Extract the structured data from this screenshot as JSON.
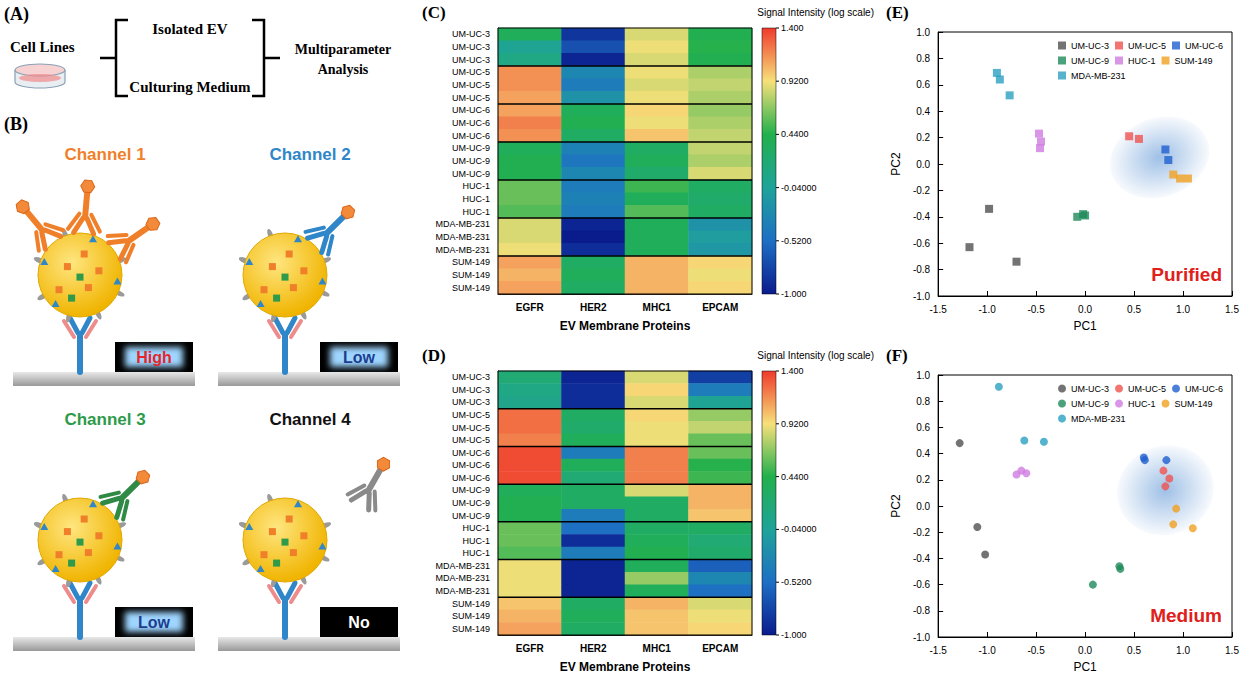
{
  "diagram": {
    "panel_A": {
      "label": "(A)",
      "source": "Cell Lines",
      "branches": [
        "Isolated EV",
        "Culturing Medium"
      ],
      "result": "Multiparameter Analysis"
    },
    "panel_B": {
      "label": "(B)",
      "channels": [
        {
          "title": "Channel 1",
          "color": "#f07f2a",
          "antibody_color": "#f07f2a",
          "bound_antibodies": 3,
          "free_antibodies": 0,
          "signal": "High",
          "signal_color": "#e3262b",
          "glow": true
        },
        {
          "title": "Channel 2",
          "color": "#2f86c8",
          "antibody_color": "#2f86c8",
          "bound_antibodies": 1,
          "free_antibodies": 0,
          "signal": "Low",
          "signal_color": "#1c3e8f",
          "glow": true
        },
        {
          "title": "Channel 3",
          "color": "#2e9a4a",
          "antibody_color": "#2e8a45",
          "bound_antibodies": 1,
          "free_antibodies": 0,
          "signal": "Low",
          "signal_color": "#1c3e8f",
          "glow": true
        },
        {
          "title": "Channel 4",
          "color": "#111111",
          "antibody_color": "#8a8a8a",
          "bound_antibodies": 0,
          "free_antibodies": 1,
          "signal": "No",
          "signal_color": "#ffffff",
          "glow": false
        }
      ]
    }
  },
  "chart_data": [
    {
      "type": "heatmap",
      "panel_label": "(C)",
      "x_label": "EV Membrane Proteins",
      "categories": [
        "EGFR",
        "HER2",
        "MHC1",
        "EPCAM"
      ],
      "rows": [
        "UM-UC-3",
        "UM-UC-3",
        "UM-UC-3",
        "UM-UC-5",
        "UM-UC-5",
        "UM-UC-5",
        "UM-UC-6",
        "UM-UC-6",
        "UM-UC-6",
        "UM-UC-9",
        "UM-UC-9",
        "UM-UC-9",
        "HUC-1",
        "HUC-1",
        "HUC-1",
        "MDA-MB-231",
        "MDA-MB-231",
        "MDA-MB-231",
        "SUM-149",
        "SUM-149",
        "SUM-149"
      ],
      "cells": [
        [
          0.35,
          -0.85,
          0.85,
          0.4
        ],
        [
          0.0,
          -0.7,
          0.9,
          0.45
        ],
        [
          0.1,
          -0.95,
          0.85,
          0.4
        ],
        [
          1.15,
          -0.3,
          0.9,
          0.75
        ],
        [
          1.15,
          -0.4,
          0.85,
          0.8
        ],
        [
          1.1,
          -0.2,
          0.9,
          0.75
        ],
        [
          1.1,
          0.35,
          0.95,
          0.7
        ],
        [
          1.2,
          0.4,
          0.9,
          0.75
        ],
        [
          1.15,
          0.3,
          1.0,
          0.8
        ],
        [
          0.35,
          -0.35,
          0.3,
          0.8
        ],
        [
          0.4,
          -0.45,
          0.35,
          0.75
        ],
        [
          0.4,
          -0.3,
          0.25,
          0.85
        ],
        [
          0.6,
          -0.4,
          0.5,
          0.3
        ],
        [
          0.6,
          -0.35,
          0.35,
          0.25
        ],
        [
          0.55,
          -0.4,
          0.55,
          0.3
        ],
        [
          0.85,
          -0.95,
          0.35,
          -0.2
        ],
        [
          0.85,
          -1.0,
          0.35,
          -0.1
        ],
        [
          0.9,
          -0.9,
          0.35,
          -0.15
        ],
        [
          1.1,
          0.3,
          1.05,
          0.95
        ],
        [
          1.05,
          0.35,
          1.05,
          0.9
        ],
        [
          1.1,
          0.3,
          1.05,
          0.95
        ]
      ],
      "colorbar": {
        "title": "Signal Intensity (log scale)",
        "range": [
          -1,
          1.4
        ],
        "ticks": [
          {
            "value": 1.4,
            "label": "1.400"
          },
          {
            "value": 0.92,
            "label": "0.9200"
          },
          {
            "value": 0.44,
            "label": "0.4400"
          },
          {
            "value": -0.04,
            "label": "-0.04000"
          },
          {
            "value": -0.52,
            "label": "-0.5200"
          },
          {
            "value": -1,
            "label": "-1.000"
          }
        ]
      }
    },
    {
      "type": "heatmap",
      "panel_label": "(D)",
      "x_label": "EV Membrane Proteins",
      "categories": [
        "EGFR",
        "HER2",
        "MHC1",
        "EPCAM"
      ],
      "rows": [
        "UM-UC-3",
        "UM-UC-3",
        "UM-UC-3",
        "UM-UC-5",
        "UM-UC-5",
        "UM-UC-5",
        "UM-UC-6",
        "UM-UC-6",
        "UM-UC-6",
        "UM-UC-9",
        "UM-UC-9",
        "UM-UC-9",
        "HUC-1",
        "HUC-1",
        "HUC-1",
        "MDA-MB-231",
        "MDA-MB-231",
        "MDA-MB-231",
        "SUM-149",
        "SUM-149",
        "SUM-149"
      ],
      "cells": [
        [
          0.2,
          -0.95,
          0.85,
          -0.8
        ],
        [
          0.1,
          -0.9,
          0.95,
          -0.4
        ],
        [
          0.05,
          -0.9,
          0.85,
          0.0
        ],
        [
          1.25,
          0.3,
          0.95,
          0.7
        ],
        [
          1.25,
          0.25,
          0.9,
          0.8
        ],
        [
          1.2,
          0.35,
          0.9,
          0.6
        ],
        [
          1.35,
          -0.4,
          1.2,
          0.6
        ],
        [
          1.35,
          0.35,
          1.2,
          0.45
        ],
        [
          1.35,
          0.2,
          1.2,
          0.5
        ],
        [
          0.35,
          0.3,
          0.85,
          1.05
        ],
        [
          0.4,
          0.3,
          0.3,
          1.05
        ],
        [
          0.4,
          -0.4,
          0.3,
          1.0
        ],
        [
          0.6,
          -0.5,
          0.3,
          0.3
        ],
        [
          0.6,
          -0.9,
          0.35,
          0.2
        ],
        [
          0.55,
          -0.4,
          0.4,
          0.25
        ],
        [
          0.9,
          -0.95,
          0.35,
          -0.6
        ],
        [
          0.9,
          -0.95,
          0.7,
          -0.3
        ],
        [
          0.9,
          -0.95,
          0.35,
          -0.5
        ],
        [
          1.0,
          0.3,
          1.05,
          0.85
        ],
        [
          1.05,
          0.35,
          1.0,
          0.9
        ],
        [
          1.1,
          0.3,
          1.0,
          0.95
        ]
      ],
      "colorbar": {
        "title": "Signal Intensity (log scale)",
        "range": [
          -1,
          1.4
        ],
        "ticks": [
          {
            "value": 1.4,
            "label": "1.400"
          },
          {
            "value": 0.92,
            "label": "0.9200"
          },
          {
            "value": 0.44,
            "label": "0.4400"
          },
          {
            "value": -0.04,
            "label": "-0.04000"
          },
          {
            "value": -0.52,
            "label": "-0.5200"
          },
          {
            "value": -1,
            "label": "-1.000"
          }
        ]
      }
    },
    {
      "type": "scatter",
      "panel_label": "(E)",
      "annotation": "Purified",
      "x_label": "PC1",
      "y_label": "PC2",
      "xlim": [
        -1.5,
        1.5
      ],
      "xticks": [
        -1.5,
        {
          "value": -1,
          "label": "-1.0"
        },
        -0.5,
        {
          "value": 0,
          "label": "0.0"
        },
        0.5,
        {
          "value": 1,
          "label": "1.0"
        },
        1.5
      ],
      "ylim": [
        -1,
        1
      ],
      "yticks": [
        {
          "value": -1,
          "label": "-1.0"
        },
        -0.8,
        -0.6,
        -0.4,
        -0.2,
        {
          "value": 0,
          "label": "0.0"
        },
        0.2,
        0.4,
        0.6,
        0.8,
        {
          "value": 1,
          "label": "1.0"
        }
      ],
      "grid": false,
      "marker": "square",
      "legend": "top-right",
      "ellipse": {
        "center": [
          0.76,
          0.05
        ],
        "radii": [
          0.52,
          0.3
        ]
      },
      "series": [
        {
          "name": "UM-UC-3",
          "color": "#505050",
          "values": [
            [
              -1.18,
              -0.63
            ],
            [
              -0.98,
              -0.34
            ],
            [
              -0.7,
              -0.74
            ]
          ]
        },
        {
          "name": "UM-UC-5",
          "color": "#f0524f",
          "values": [
            [
              0.45,
              0.21
            ],
            [
              0.55,
              0.19
            ]
          ]
        },
        {
          "name": "UM-UC-6",
          "color": "#1f5fd0",
          "values": [
            [
              0.82,
              0.11
            ],
            [
              0.85,
              0.03
            ]
          ]
        },
        {
          "name": "UM-UC-9",
          "color": "#1e8a5a",
          "values": [
            [
              -0.08,
              -0.4
            ],
            [
              -0.02,
              -0.38
            ],
            [
              0.0,
              -0.39
            ]
          ]
        },
        {
          "name": "HUC-1",
          "color": "#d07be0",
          "values": [
            [
              -0.47,
              0.23
            ],
            [
              -0.45,
              0.17
            ],
            [
              -0.46,
              0.12
            ]
          ]
        },
        {
          "name": "SUM-149",
          "color": "#f0a020",
          "values": [
            [
              0.9,
              -0.08
            ],
            [
              0.97,
              -0.11
            ],
            [
              1.05,
              -0.11
            ]
          ]
        },
        {
          "name": "MDA-MB-231",
          "color": "#2aa0c0",
          "values": [
            [
              -0.9,
              0.69
            ],
            [
              -0.87,
              0.64
            ],
            [
              -0.77,
              0.52
            ]
          ]
        }
      ]
    },
    {
      "type": "scatter",
      "panel_label": "(F)",
      "annotation": "Medium",
      "x_label": "PC1",
      "y_label": "PC2",
      "xlim": [
        -1.5,
        1.5
      ],
      "xticks": [
        -1.5,
        {
          "value": -1,
          "label": "-1.0"
        },
        -0.5,
        {
          "value": 0,
          "label": "0.0"
        },
        0.5,
        {
          "value": 1,
          "label": "1.0"
        },
        1.5
      ],
      "ylim": [
        -1,
        1
      ],
      "yticks": [
        {
          "value": -1,
          "label": "-1.0"
        },
        -0.8,
        -0.6,
        -0.4,
        -0.2,
        {
          "value": 0,
          "label": "0.0"
        },
        0.2,
        0.4,
        0.6,
        0.8,
        {
          "value": 1,
          "label": "1.0"
        }
      ],
      "grid": false,
      "marker": "circle",
      "legend": "top-right",
      "ellipse": {
        "center": [
          0.82,
          0.12
        ],
        "radii": [
          0.5,
          0.34
        ]
      },
      "series": [
        {
          "name": "UM-UC-3",
          "color": "#505050",
          "values": [
            [
              -1.28,
              0.48
            ],
            [
              -1.1,
              -0.16
            ],
            [
              -1.02,
              -0.37
            ]
          ]
        },
        {
          "name": "UM-UC-5",
          "color": "#f0524f",
          "values": [
            [
              0.8,
              0.27
            ],
            [
              0.82,
              0.15
            ],
            [
              0.86,
              0.21
            ]
          ]
        },
        {
          "name": "UM-UC-6",
          "color": "#1f5fd0",
          "values": [
            [
              0.6,
              0.37
            ],
            [
              0.61,
              0.35
            ],
            [
              0.83,
              0.35
            ]
          ]
        },
        {
          "name": "UM-UC-9",
          "color": "#1e8a5a",
          "values": [
            [
              0.08,
              -0.6
            ],
            [
              0.35,
              -0.46
            ],
            [
              0.36,
              -0.48
            ]
          ]
        },
        {
          "name": "HUC-1",
          "color": "#d07be0",
          "values": [
            [
              -0.7,
              0.24
            ],
            [
              -0.65,
              0.27
            ],
            [
              -0.6,
              0.25
            ]
          ]
        },
        {
          "name": "SUM-149",
          "color": "#f0a020",
          "values": [
            [
              0.93,
              -0.02
            ],
            [
              0.9,
              -0.14
            ],
            [
              1.1,
              -0.17
            ]
          ]
        },
        {
          "name": "MDA-MB-231",
          "color": "#2aa0c0",
          "values": [
            [
              -0.88,
              0.91
            ],
            [
              -0.62,
              0.5
            ],
            [
              -0.42,
              0.49
            ]
          ]
        }
      ]
    }
  ]
}
